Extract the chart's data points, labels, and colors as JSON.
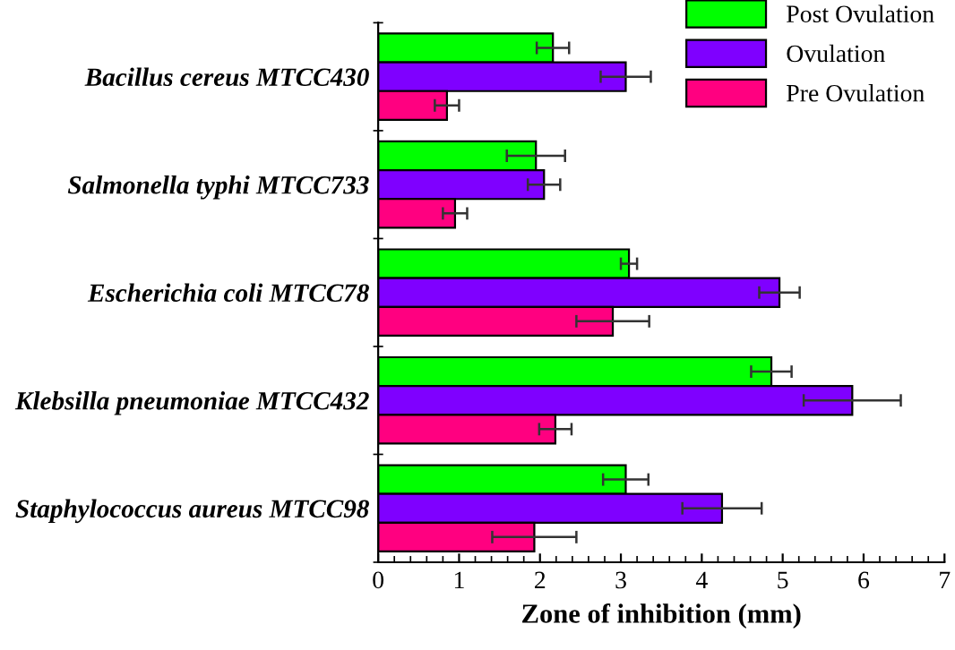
{
  "chart_data": {
    "type": "bar",
    "orientation": "horizontal",
    "xlabel": "Zone of inhibition (mm)",
    "categories": [
      "Bacillus cereus MTCC430",
      "Salmonella typhi MTCC733",
      "Escherichia coli MTCC78",
      "Klebsilla pneumoniae MTCC432",
      "Staphylococcus aureus MTCC98"
    ],
    "series": [
      {
        "name": "Post Ovulation",
        "color": "#00ff00",
        "values": [
          2.16,
          1.95,
          3.1,
          4.86,
          3.06
        ],
        "errors": [
          0.2,
          0.36,
          0.1,
          0.25,
          0.28
        ]
      },
      {
        "name": "Ovulation",
        "color": "#7f00ff",
        "values": [
          3.06,
          2.05,
          4.96,
          5.86,
          4.25
        ],
        "errors": [
          0.31,
          0.2,
          0.25,
          0.6,
          0.49
        ]
      },
      {
        "name": "Pre Ovulation",
        "color": "#ff0080",
        "values": [
          0.85,
          0.95,
          2.9,
          2.19,
          1.93
        ],
        "errors": [
          0.15,
          0.15,
          0.45,
          0.2,
          0.52
        ]
      }
    ],
    "xlim": [
      0,
      7
    ],
    "xticks": [
      0,
      1,
      2,
      3,
      4,
      5,
      6,
      7
    ],
    "grid": false,
    "legend": "top right"
  }
}
